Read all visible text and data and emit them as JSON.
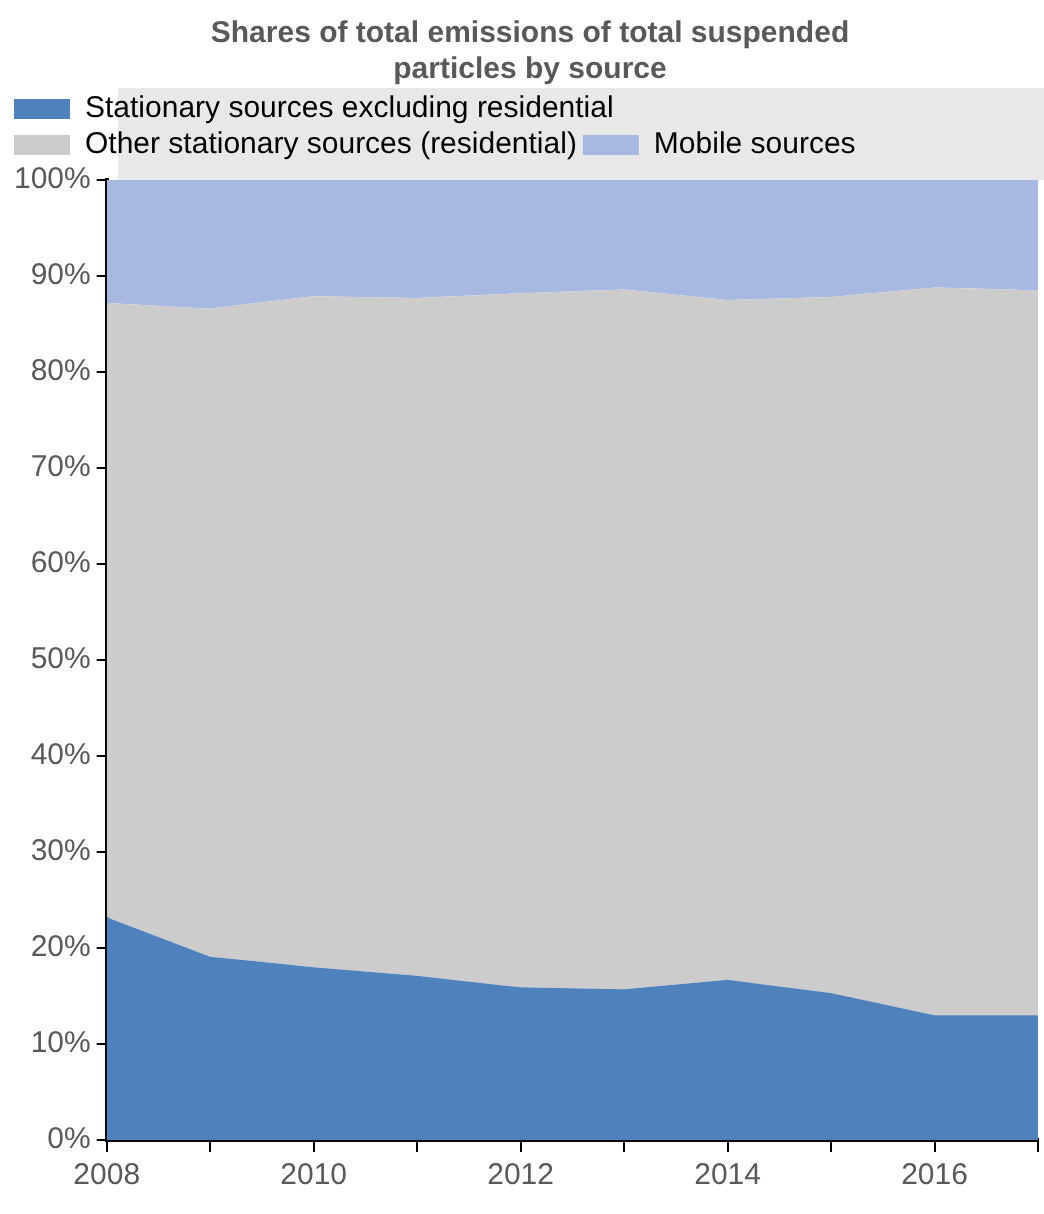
{
  "chart_data": {
    "type": "area",
    "title": "Shares of total emissions of total suspended particles by source",
    "stacked": true,
    "legend": "top",
    "x": [
      2008,
      2009,
      2010,
      2011,
      2012,
      2013,
      2014,
      2015,
      2016,
      2017
    ],
    "xlim": [
      2008,
      2017
    ],
    "xticks": [
      2008,
      {
        "value": 2009,
        "label": null
      },
      2010,
      {
        "value": 2011,
        "label": null
      },
      2012,
      {
        "value": 2013,
        "label": null
      },
      2014,
      {
        "value": 2015,
        "label": null
      },
      2016,
      {
        "value": 2017,
        "label": null
      }
    ],
    "ylim": [
      0,
      100
    ],
    "yticks": [
      {
        "value": 0,
        "label": "0%"
      },
      {
        "value": 10,
        "label": "10%"
      },
      {
        "value": 20,
        "label": "20%"
      },
      {
        "value": 30,
        "label": "30%"
      },
      {
        "value": 40,
        "label": "40%"
      },
      {
        "value": 50,
        "label": "50%"
      },
      {
        "value": 60,
        "label": "60%"
      },
      {
        "value": 70,
        "label": "70%"
      },
      {
        "value": 80,
        "label": "80%"
      },
      {
        "value": 90,
        "label": "90%"
      },
      {
        "value": 100,
        "label": "100%"
      }
    ],
    "grid": false,
    "series": [
      {
        "name": "Stationary sources excluding residential",
        "color": "#4f81bd",
        "values": [
          23.2,
          19.1,
          18.0,
          17.1,
          15.9,
          15.7,
          16.7,
          15.3,
          13.0,
          13.0
        ]
      },
      {
        "name": "Other stationary sources (residential)",
        "color": "#cccccc",
        "values": [
          64.0,
          67.5,
          69.9,
          70.6,
          72.3,
          72.9,
          70.8,
          72.5,
          75.8,
          75.5
        ]
      },
      {
        "name": "Mobile sources",
        "color": "#a7b8e1",
        "values": [
          12.8,
          13.4,
          12.1,
          12.3,
          11.8,
          11.4,
          12.5,
          12.2,
          11.2,
          11.5
        ]
      }
    ]
  }
}
